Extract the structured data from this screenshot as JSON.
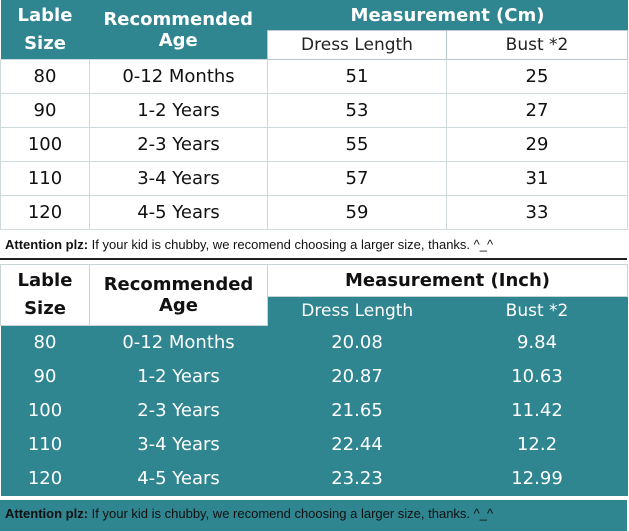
{
  "cm_table": {
    "label_header": "Lable Size",
    "label_header_line1": "Lable",
    "label_header_line2": "Size",
    "age_header": "Recommended Age",
    "measurement_header": "Measurement (Cm)",
    "col_dress": "Dress Length",
    "col_bust": "Bust *2",
    "rows": [
      {
        "size": "80",
        "age": "0-12 Months",
        "dress": "51",
        "bust": "25"
      },
      {
        "size": "90",
        "age": "1-2 Years",
        "dress": "53",
        "bust": "27"
      },
      {
        "size": "100",
        "age": "2-3 Years",
        "dress": "55",
        "bust": "29"
      },
      {
        "size": "110",
        "age": "3-4 Years",
        "dress": "57",
        "bust": "31"
      },
      {
        "size": "120",
        "age": "4-5 Years",
        "dress": "59",
        "bust": "33"
      }
    ]
  },
  "note_1": {
    "prefix": "Attention plz:",
    "text": " If your kid is chubby, we recomend choosing a larger size, thanks. ^_^"
  },
  "inch_table": {
    "label_header_line1": "Lable",
    "label_header_line2": "Size",
    "age_header": "Recommended Age",
    "measurement_header": "Measurement (Inch)",
    "col_dress": "Dress Length",
    "col_bust": "Bust *2",
    "rows": [
      {
        "size": "80",
        "age": "0-12 Months",
        "dress": "20.08",
        "bust": "9.84"
      },
      {
        "size": "90",
        "age": "1-2 Years",
        "dress": "20.87",
        "bust": "10.63"
      },
      {
        "size": "100",
        "age": "2-3 Years",
        "dress": "21.65",
        "bust": "11.42"
      },
      {
        "size": "110",
        "age": "3-4 Years",
        "dress": "22.44",
        "bust": "12.2"
      },
      {
        "size": "120",
        "age": "4-5 Years",
        "dress": "23.23",
        "bust": "12.99"
      }
    ]
  },
  "note_2": {
    "prefix": "Attention plz:",
    "text": " If your kid is chubby, we recomend choosing a larger size, thanks. ^_^"
  },
  "colors": {
    "teal": "#2f8590",
    "white": "#ffffff"
  }
}
